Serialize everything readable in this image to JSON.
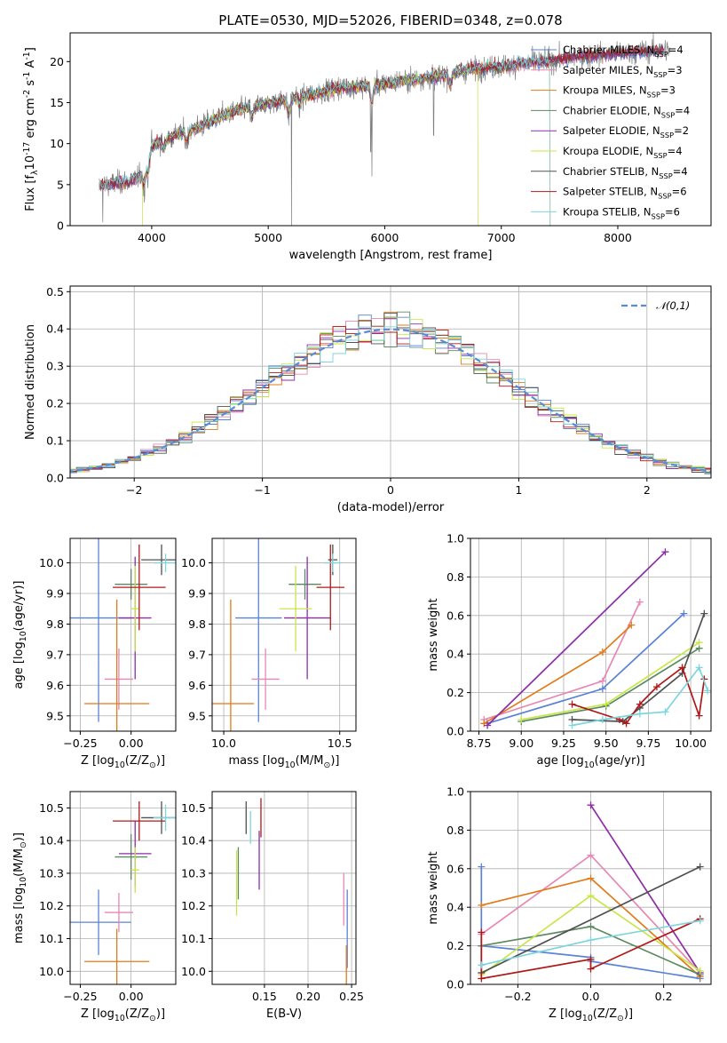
{
  "chart_data": [
    {
      "id": "spectrum",
      "type": "line",
      "title": "PLATE=0530, MJD=52026, FIBERID=0348, z=0.078",
      "xlabel": "wavelength [Angstrom, rest frame]",
      "ylabel": "Flux [f$_\\lambda$10$^{-17}$ erg cm$^{-2}$ s$^{-1}$ A$^{-1}$]",
      "xlim": [
        3300,
        8800
      ],
      "ylim": [
        0,
        23.5
      ],
      "xticks": [
        4000,
        5000,
        6000,
        7000,
        8000
      ],
      "yticks": [
        0,
        5,
        10,
        15,
        20
      ],
      "grid": false,
      "legend_position": "right",
      "continuum": {
        "x": [
          3550,
          3700,
          3800,
          3900,
          4000,
          4200,
          4400,
          4600,
          4800,
          5000,
          5200,
          5400,
          5600,
          5800,
          6000,
          6200,
          6400,
          6600,
          6800,
          7000,
          7200,
          7400,
          7600,
          7800,
          8000,
          8200,
          8400
        ],
        "y": [
          4.8,
          5.2,
          5.4,
          6.0,
          9.8,
          11.0,
          12.0,
          13.4,
          14.3,
          14.9,
          15.5,
          16.1,
          16.8,
          17.0,
          17.3,
          17.8,
          18.1,
          18.6,
          19.2,
          19.4,
          19.8,
          20.1,
          20.5,
          20.8,
          21.0,
          21.2,
          21.4
        ]
      },
      "series": [
        {
          "name": "Chabrier MILES, N$_{SSP}$=4",
          "color": "#5a82d6"
        },
        {
          "name": "Salpeter MILES, N$_{SSP}$=3",
          "color": "#e687b4"
        },
        {
          "name": "Kroupa MILES, N$_{SSP}$=3",
          "color": "#e07b1c"
        },
        {
          "name": "Chabrier ELODIE, N$_{SSP}$=4",
          "color": "#5c8a60"
        },
        {
          "name": "Salpeter ELODIE, N$_{SSP}$=2",
          "color": "#8e2ca8"
        },
        {
          "name": "Kroupa ELODIE, N$_{SSP}$=4",
          "color": "#c8e64a"
        },
        {
          "name": "Chabrier STELIB, N$_{SSP}$=4",
          "color": "#505050"
        },
        {
          "name": "Salpeter STELIB, N$_{SSP}$=6",
          "color": "#b01818"
        },
        {
          "name": "Kroupa STELIB, N$_{SSP}$=6",
          "color": "#7dd6dc"
        }
      ]
    },
    {
      "id": "residuals",
      "type": "line",
      "xlabel": "(data-model)/error",
      "ylabel": "Normed distribution",
      "xlim": [
        -2.5,
        2.5
      ],
      "ylim": [
        0,
        0.515
      ],
      "xticks": [
        -2,
        -1,
        0,
        1,
        2
      ],
      "yticks": [
        0.0,
        0.1,
        0.2,
        0.3,
        0.4,
        0.5
      ],
      "grid": true,
      "legend_position": "top-right",
      "normal_label": "$\\mathcal{N}(0,1)$",
      "normal_color": "#5a8ad8"
    },
    {
      "id": "age-vs-Z",
      "type": "scatter",
      "xlabel": "Z [log$_{10}$(Z/Z$_\\odot$)]",
      "ylabel": "age  [log$_{10}$(age/yr)]",
      "xlim": [
        -0.3,
        0.22
      ],
      "ylim": [
        9.45,
        10.08
      ],
      "xticks": [
        -0.25,
        0.0
      ],
      "yticks": [
        9.5,
        9.6,
        9.7,
        9.8,
        9.9,
        10.0
      ],
      "grid": true,
      "points": [
        {
          "color": "#5a82d6",
          "x": -0.16,
          "xerr": 0.16,
          "y": 9.82,
          "yerr": 0.34
        },
        {
          "color": "#e687b4",
          "x": -0.06,
          "xerr": 0.07,
          "y": 9.62,
          "yerr": 0.1
        },
        {
          "color": "#e07b1c",
          "x": -0.07,
          "xerr": 0.16,
          "y": 9.54,
          "yerr": 0.34
        },
        {
          "color": "#5c8a60",
          "x": 0.0,
          "xerr": 0.08,
          "y": 9.93,
          "yerr": 0.05
        },
        {
          "color": "#8e2ca8",
          "x": 0.02,
          "xerr": 0.08,
          "y": 9.82,
          "yerr": 0.2
        },
        {
          "color": "#c8e64a",
          "x": 0.02,
          "xerr": 0.02,
          "y": 9.85,
          "yerr": 0.14
        },
        {
          "color": "#505050",
          "x": 0.15,
          "xerr": 0.1,
          "y": 10.01,
          "yerr": 0.05
        },
        {
          "color": "#b01818",
          "x": 0.04,
          "xerr": 0.13,
          "y": 9.92,
          "yerr": 0.14
        },
        {
          "color": "#7dd6dc",
          "x": 0.17,
          "xerr": 0.06,
          "y": 10.0,
          "yerr": 0.03
        }
      ]
    },
    {
      "id": "age-vs-mass",
      "type": "scatter",
      "xlabel": "mass [log$_{10}$(M/M$_\\odot$)]",
      "ylabel": "",
      "xlim": [
        9.95,
        10.57
      ],
      "ylim": [
        9.45,
        10.08
      ],
      "xticks": [
        10.0,
        10.5
      ],
      "yticks": [
        9.5,
        9.6,
        9.7,
        9.8,
        9.9,
        10.0
      ],
      "grid": true,
      "points": [
        {
          "color": "#5a82d6",
          "x": 10.15,
          "xerr": 0.1,
          "y": 9.82,
          "yerr": 0.34
        },
        {
          "color": "#e687b4",
          "x": 10.18,
          "xerr": 0.06,
          "y": 9.62,
          "yerr": 0.1
        },
        {
          "color": "#e07b1c",
          "x": 10.03,
          "xerr": 0.1,
          "y": 9.54,
          "yerr": 0.34
        },
        {
          "color": "#5c8a60",
          "x": 10.35,
          "xerr": 0.07,
          "y": 9.93,
          "yerr": 0.05
        },
        {
          "color": "#8e2ca8",
          "x": 10.36,
          "xerr": 0.1,
          "y": 9.82,
          "yerr": 0.2
        },
        {
          "color": "#c8e64a",
          "x": 10.31,
          "xerr": 0.07,
          "y": 9.85,
          "yerr": 0.14
        },
        {
          "color": "#505050",
          "x": 10.47,
          "xerr": 0.02,
          "y": 10.01,
          "yerr": 0.05
        },
        {
          "color": "#b01818",
          "x": 10.46,
          "xerr": 0.06,
          "y": 9.92,
          "yerr": 0.14
        },
        {
          "color": "#7dd6dc",
          "x": 10.47,
          "xerr": 0.04,
          "y": 10.0,
          "yerr": 0.03
        }
      ]
    },
    {
      "id": "weight-vs-age",
      "type": "line",
      "xlabel": "age  [log$_{10}$(age/yr)]",
      "ylabel": "mass weight",
      "xlim": [
        8.7,
        10.12
      ],
      "ylim": [
        0,
        1.0
      ],
      "xticks": [
        8.75,
        9.0,
        9.25,
        9.5,
        9.75,
        10.0
      ],
      "yticks": [
        0.0,
        0.2,
        0.4,
        0.6,
        0.8,
        1.0
      ],
      "grid": true,
      "series": [
        {
          "color": "#5a82d6",
          "x": [
            8.8,
            9.48,
            9.96
          ],
          "y": [
            0.04,
            0.22,
            0.61
          ]
        },
        {
          "color": "#e687b4",
          "x": [
            8.78,
            9.48,
            9.7
          ],
          "y": [
            0.06,
            0.26,
            0.67
          ]
        },
        {
          "color": "#e07b1c",
          "x": [
            8.78,
            9.48,
            9.65
          ],
          "y": [
            0.04,
            0.41,
            0.55
          ]
        },
        {
          "color": "#5c8a60",
          "x": [
            9.0,
            9.5,
            10.05
          ],
          "y": [
            0.05,
            0.13,
            0.43
          ]
        },
        {
          "color": "#8e2ca8",
          "x": [
            8.8,
            9.85
          ],
          "y": [
            0.03,
            0.93
          ]
        },
        {
          "color": "#c8e64a",
          "x": [
            9.0,
            9.5,
            10.05
          ],
          "y": [
            0.06,
            0.14,
            0.46
          ]
        },
        {
          "color": "#505050",
          "x": [
            9.3,
            9.6,
            9.7,
            9.95,
            10.08
          ],
          "y": [
            0.06,
            0.05,
            0.12,
            0.3,
            0.61
          ]
        },
        {
          "color": "#b01818",
          "x": [
            9.3,
            9.58,
            9.62,
            9.7,
            9.8,
            9.95,
            10.05,
            10.08
          ],
          "y": [
            0.14,
            0.06,
            0.04,
            0.14,
            0.23,
            0.33,
            0.08,
            0.27
          ]
        },
        {
          "color": "#7dd6dc",
          "x": [
            9.3,
            9.48,
            9.7,
            9.85,
            10.05,
            10.1
          ],
          "y": [
            0.03,
            0.06,
            0.09,
            0.1,
            0.33,
            0.21
          ]
        }
      ]
    },
    {
      "id": "mass-vs-Z",
      "type": "scatter",
      "xlabel": "Z [log$_{10}$(Z/Z$_\\odot$)]",
      "ylabel": "mass [log$_{10}$(M/M$_\\odot$)]",
      "xlim": [
        -0.3,
        0.22
      ],
      "ylim": [
        9.96,
        10.55
      ],
      "xticks": [
        -0.25,
        0.0
      ],
      "yticks": [
        10.0,
        10.1,
        10.2,
        10.3,
        10.4,
        10.5
      ],
      "grid": true,
      "points": [
        {
          "color": "#5a82d6",
          "x": -0.16,
          "xerr": 0.16,
          "y": 10.15,
          "yerr": 0.1
        },
        {
          "color": "#e687b4",
          "x": -0.06,
          "xerr": 0.07,
          "y": 10.18,
          "yerr": 0.06
        },
        {
          "color": "#e07b1c",
          "x": -0.07,
          "xerr": 0.16,
          "y": 10.03,
          "yerr": 0.1
        },
        {
          "color": "#5c8a60",
          "x": 0.0,
          "xerr": 0.08,
          "y": 10.35,
          "yerr": 0.07
        },
        {
          "color": "#8e2ca8",
          "x": 0.02,
          "xerr": 0.08,
          "y": 10.36,
          "yerr": 0.1
        },
        {
          "color": "#c8e64a",
          "x": 0.02,
          "xerr": 0.02,
          "y": 10.31,
          "yerr": 0.07
        },
        {
          "color": "#505050",
          "x": 0.15,
          "xerr": 0.1,
          "y": 10.47,
          "yerr": 0.05
        },
        {
          "color": "#b01818",
          "x": 0.04,
          "xerr": 0.13,
          "y": 10.46,
          "yerr": 0.06
        },
        {
          "color": "#7dd6dc",
          "x": 0.17,
          "xerr": 0.06,
          "y": 10.47,
          "yerr": 0.04
        }
      ]
    },
    {
      "id": "mass-vs-EBV",
      "type": "scatter",
      "xlabel": "E(B-V)",
      "ylabel": "",
      "xlim": [
        0.09,
        0.255
      ],
      "ylim": [
        9.96,
        10.55
      ],
      "xticks": [
        0.15,
        0.2,
        0.25
      ],
      "yticks": [
        10.0,
        10.1,
        10.2,
        10.3,
        10.4,
        10.5
      ],
      "grid": true,
      "points": [
        {
          "color": "#5a82d6",
          "x": 0.245,
          "xerr": 0,
          "y": 10.13,
          "yerr": 0.12
        },
        {
          "color": "#e687b4",
          "x": 0.241,
          "xerr": 0,
          "y": 10.22,
          "yerr": 0.08
        },
        {
          "color": "#e07b1c",
          "x": 0.244,
          "xerr": 0,
          "y": 10.02,
          "yerr": 0.06
        },
        {
          "color": "#5c8a60",
          "x": 0.12,
          "xerr": 0,
          "y": 10.3,
          "yerr": 0.08
        },
        {
          "color": "#8e2ca8",
          "x": 0.144,
          "xerr": 0,
          "y": 10.34,
          "yerr": 0.09
        },
        {
          "color": "#c8e64a",
          "x": 0.118,
          "xerr": 0,
          "y": 10.27,
          "yerr": 0.1
        },
        {
          "color": "#505050",
          "x": 0.129,
          "xerr": 0,
          "y": 10.47,
          "yerr": 0.05
        },
        {
          "color": "#b01818",
          "x": 0.146,
          "xerr": 0,
          "y": 10.47,
          "yerr": 0.06
        },
        {
          "color": "#7dd6dc",
          "x": 0.134,
          "xerr": 0,
          "y": 10.44,
          "yerr": 0.05
        }
      ]
    },
    {
      "id": "weight-vs-Z",
      "type": "line",
      "xlabel": "Z [log$_{10}$(Z/Z$_\\odot$)]",
      "ylabel": "mass weight",
      "xlim": [
        -0.33,
        0.33
      ],
      "ylim": [
        0,
        1.0
      ],
      "xticks": [
        -0.2,
        0.0,
        0.2
      ],
      "yticks": [
        0.0,
        0.2,
        0.4,
        0.6,
        0.8,
        1.0
      ],
      "grid": true,
      "series": [
        {
          "color": "#5a82d6",
          "x": [
            -0.3,
            -0.3,
            -0.3,
            0.0,
            0.0,
            0.3
          ],
          "y": [
            0.06,
            0.61,
            0.2,
            0.14,
            0.12,
            0.03
          ]
        },
        {
          "color": "#e687b4",
          "x": [
            -0.3,
            0.0,
            0.3
          ],
          "y": [
            0.26,
            0.67,
            0.06
          ]
        },
        {
          "color": "#e07b1c",
          "x": [
            -0.3,
            0.0,
            0.3
          ],
          "y": [
            0.41,
            0.55,
            0.04
          ]
        },
        {
          "color": "#5c8a60",
          "x": [
            -0.3,
            0.0,
            0.3
          ],
          "y": [
            0.2,
            0.3,
            0.05
          ]
        },
        {
          "color": "#8e2ca8",
          "x": [
            0.0,
            0.3
          ],
          "y": [
            0.93,
            0.06
          ]
        },
        {
          "color": "#c8e64a",
          "x": [
            -0.3,
            0.0,
            0.3
          ],
          "y": [
            0.05,
            0.46,
            0.07
          ]
        },
        {
          "color": "#505050",
          "x": [
            -0.3,
            0.3
          ],
          "y": [
            0.06,
            0.61
          ]
        },
        {
          "color": "#b01818",
          "x": [
            -0.3,
            -0.3,
            0.0,
            0.0,
            0.3
          ],
          "y": [
            0.27,
            0.03,
            0.13,
            0.08,
            0.34
          ]
        },
        {
          "color": "#7dd6dc",
          "x": [
            -0.3,
            0.0,
            0.3
          ],
          "y": [
            0.1,
            0.23,
            0.33
          ]
        }
      ]
    }
  ]
}
